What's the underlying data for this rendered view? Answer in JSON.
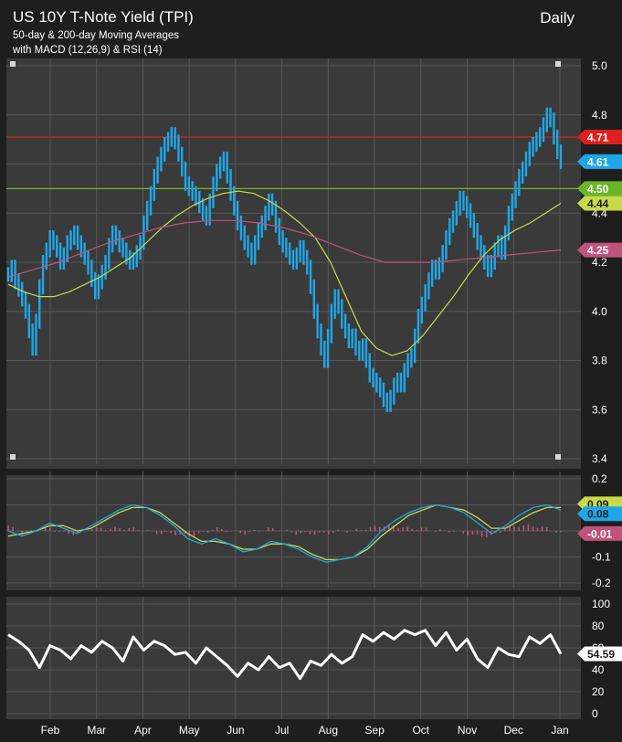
{
  "header": {
    "title": "US 10Y T-Note Yield (TPI)",
    "subtitle_line1": "50-day & 200-day Moving Averages",
    "subtitle_line2": "with MACD (12,26,9) & RSI (14)",
    "period": "Daily"
  },
  "colors": {
    "background": "#1e1e1e",
    "panel": "#3a3a3a",
    "grid": "#575757",
    "price": "#1ea7e8",
    "sma50": "#c8d94a",
    "sma200": "#c0527e",
    "resistance": "#e0201e",
    "support": "#6ab52a",
    "rsi": "#ffffff",
    "macd_line": "#1ea7e8",
    "signal_line": "#c8d94a",
    "histogram": "#c0527e"
  },
  "chart_data": [
    {
      "type": "line",
      "panel": "price",
      "x_ticks": [
        "Feb",
        "Mar",
        "Apr",
        "May",
        "Jun",
        "Jul",
        "Aug",
        "Sep",
        "Oct",
        "Nov",
        "Dec",
        "Jan"
      ],
      "y_ticks": [
        "5.0",
        "4.8",
        "4.6",
        "4.4",
        "4.2",
        "4.0",
        "3.8",
        "3.6",
        "3.4"
      ],
      "ylim": [
        3.4,
        5.0
      ],
      "series": [
        {
          "values": [
            4.15,
            4.18,
            4.12,
            4.09,
            4.05,
            4.0,
            3.92,
            3.85,
            3.96,
            4.1,
            4.2,
            4.25,
            4.3,
            4.28,
            4.25,
            4.2,
            4.23,
            4.28,
            4.3,
            4.32,
            4.28,
            4.25,
            4.22,
            4.18,
            4.13,
            4.08,
            4.12,
            4.16,
            4.2,
            4.27,
            4.32,
            4.3,
            4.27,
            4.25,
            4.22,
            4.2,
            4.21,
            4.24,
            4.28,
            4.36,
            4.42,
            4.48,
            4.55,
            4.6,
            4.64,
            4.68,
            4.7,
            4.72,
            4.69,
            4.64,
            4.58,
            4.52,
            4.5,
            4.48,
            4.46,
            4.43,
            4.4,
            4.38,
            4.45,
            4.52,
            4.57,
            4.6,
            4.62,
            4.55,
            4.48,
            4.42,
            4.36,
            4.32,
            4.28,
            4.25,
            4.22,
            4.28,
            4.33,
            4.36,
            4.4,
            4.45,
            4.42,
            4.35,
            4.3,
            4.27,
            4.25,
            4.22,
            4.2,
            4.23,
            4.26,
            4.22,
            4.18,
            4.1,
            4.0,
            3.92,
            3.85,
            3.8,
            3.9,
            4.0,
            4.06,
            4.02,
            3.96,
            3.92,
            3.88,
            3.9,
            3.85,
            3.83,
            3.86,
            3.8,
            3.74,
            3.72,
            3.7,
            3.68,
            3.64,
            3.62,
            3.65,
            3.7,
            3.72,
            3.7,
            3.76,
            3.8,
            3.82,
            3.9,
            3.98,
            4.03,
            4.08,
            4.13,
            4.18,
            4.16,
            4.19,
            4.24,
            4.3,
            4.35,
            4.38,
            4.42,
            4.46,
            4.44,
            4.41,
            4.37,
            4.33,
            4.28,
            4.24,
            4.2,
            4.17,
            4.2,
            4.25,
            4.28,
            4.24,
            4.32,
            4.4,
            4.45,
            4.5,
            4.55,
            4.58,
            4.62,
            4.66,
            4.68,
            4.7,
            4.72,
            4.76,
            4.8,
            4.78,
            4.71,
            4.65,
            4.61
          ]
        },
        {
          "name": "50-day",
          "values": [
            4.11,
            4.08,
            4.06,
            4.06,
            4.08,
            4.11,
            4.14,
            4.18,
            4.22,
            4.28,
            4.34,
            4.39,
            4.43,
            4.46,
            4.48,
            4.49,
            4.48,
            4.45,
            4.41,
            4.36,
            4.3,
            4.2,
            4.06,
            3.92,
            3.85,
            3.82,
            3.84,
            3.9,
            3.98,
            4.06,
            4.15,
            4.23,
            4.29,
            4.33,
            4.36,
            4.4,
            4.44
          ]
        },
        {
          "name": "200-day",
          "values": [
            4.14,
            4.17,
            4.2,
            4.24,
            4.28,
            4.31,
            4.34,
            4.36,
            4.37,
            4.37,
            4.36,
            4.34,
            4.31,
            4.27,
            4.23,
            4.2,
            4.2,
            4.2,
            4.21,
            4.22,
            4.23,
            4.24,
            4.25
          ]
        }
      ],
      "levels": [
        {
          "value": 4.71,
          "label": "4.71",
          "kind": "resistance"
        },
        {
          "value": 4.5,
          "label": "4.50",
          "kind": "support"
        }
      ],
      "markers": [
        {
          "label": "4.61",
          "value": 4.61
        },
        {
          "label": "4.44",
          "value": 4.44
        },
        {
          "label": "4.25",
          "value": 4.25
        }
      ]
    },
    {
      "type": "line",
      "panel": "macd",
      "y_ticks": [
        "0.2",
        "0.1",
        "0.0",
        "-0.1",
        "-0.2"
      ],
      "ylim": [
        -0.2,
        0.2
      ],
      "series": [
        {
          "values": [
            0.0,
            -0.02,
            0.0,
            0.03,
            0.01,
            -0.01,
            0.02,
            0.05,
            0.08,
            0.1,
            0.09,
            0.06,
            0.02,
            -0.03,
            -0.05,
            -0.03,
            -0.05,
            -0.08,
            -0.07,
            -0.04,
            -0.05,
            -0.07,
            -0.1,
            -0.12,
            -0.11,
            -0.1,
            -0.06,
            0.0,
            0.04,
            0.07,
            0.09,
            0.1,
            0.09,
            0.07,
            0.03,
            -0.01,
            0.02,
            0.06,
            0.09,
            0.1,
            0.08
          ]
        },
        {
          "values": [
            -0.02,
            -0.01,
            0.0,
            0.02,
            0.02,
            0.0,
            0.01,
            0.04,
            0.07,
            0.09,
            0.09,
            0.07,
            0.03,
            -0.01,
            -0.04,
            -0.04,
            -0.05,
            -0.07,
            -0.07,
            -0.05,
            -0.05,
            -0.06,
            -0.09,
            -0.11,
            -0.11,
            -0.1,
            -0.07,
            -0.02,
            0.02,
            0.06,
            0.08,
            0.1,
            0.09,
            0.08,
            0.05,
            0.01,
            0.01,
            0.04,
            0.07,
            0.09,
            0.09
          ]
        },
        {
          "values": [
            0.02,
            -0.01,
            0.0,
            0.01,
            -0.01,
            -0.01,
            0.01,
            0.01,
            0.01,
            0.01,
            0.0,
            -0.01,
            -0.01,
            -0.02,
            -0.01,
            0.01,
            0.0,
            -0.01,
            0.0,
            0.01,
            0.0,
            -0.01,
            -0.01,
            -0.01,
            0.0,
            0.0,
            0.01,
            0.02,
            0.02,
            0.01,
            0.01,
            0.0,
            0.0,
            -0.01,
            -0.02,
            -0.02,
            0.01,
            0.02,
            0.02,
            0.01,
            -0.01
          ]
        }
      ],
      "markers": [
        {
          "label": "0.09",
          "value": 0.09
        },
        {
          "label": "0.08",
          "value": 0.08
        },
        {
          "label": "-0.01",
          "value": -0.01
        }
      ]
    },
    {
      "type": "line",
      "panel": "rsi",
      "y_ticks": [
        "100",
        "80",
        "60",
        "40",
        "20",
        "0"
      ],
      "ylim": [
        0,
        100
      ],
      "series": [
        {
          "values": [
            72,
            66,
            58,
            42,
            62,
            58,
            50,
            62,
            56,
            66,
            60,
            48,
            70,
            58,
            66,
            62,
            54,
            56,
            46,
            60,
            52,
            44,
            34,
            46,
            40,
            52,
            42,
            46,
            32,
            48,
            44,
            54,
            46,
            52,
            72,
            66,
            74,
            68,
            76,
            72,
            76,
            62,
            74,
            58,
            68,
            50,
            42,
            60,
            54,
            52,
            70,
            64,
            72,
            54.59
          ]
        }
      ],
      "markers": [
        {
          "label": "54.59",
          "value": 54.59
        }
      ]
    }
  ]
}
